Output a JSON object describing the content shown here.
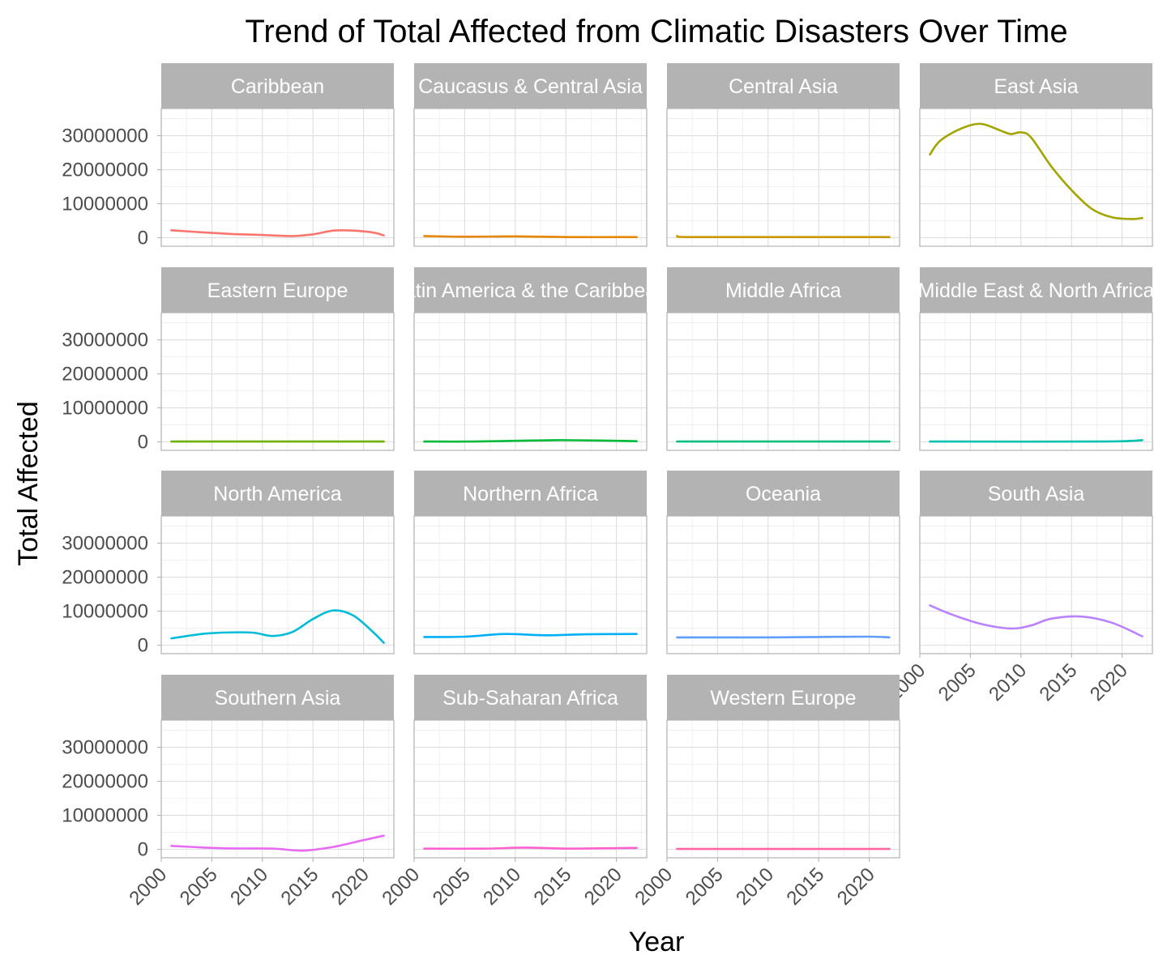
{
  "chart_data": {
    "type": "line",
    "title": "Trend of Total Affected from Climatic Disasters Over Time",
    "xlabel": "Year",
    "ylabel": "Total Affected",
    "xlim": [
      2000,
      2023
    ],
    "ylim": [
      -2500000,
      38000000
    ],
    "x_ticks": [
      "2000",
      "2005",
      "2010",
      "2015",
      "2020"
    ],
    "y_ticks": [
      "0",
      "10000000",
      "20000000",
      "30000000"
    ],
    "grid": true,
    "legend": "none",
    "panels": [
      {
        "name": "Caribbean",
        "color": "#F8766D",
        "x": [
          2001,
          2004,
          2007,
          2010,
          2013,
          2015,
          2017,
          2019,
          2021,
          2022
        ],
        "y": [
          2200000,
          1600000,
          1100000,
          800000,
          500000,
          1000000,
          2100000,
          2100000,
          1500000,
          700000
        ]
      },
      {
        "name": "Caucasus & Central Asia",
        "color": "#E58700",
        "x": [
          2001,
          2005,
          2010,
          2015,
          2022
        ],
        "y": [
          500000,
          300000,
          400000,
          200000,
          200000
        ]
      },
      {
        "name": "Central Asia",
        "color": "#C99800",
        "x": [
          2001,
          2002,
          2010,
          2022
        ],
        "y": [
          500000,
          200000,
          200000,
          200000
        ]
      },
      {
        "name": "East Asia",
        "color": "#A3A500",
        "x": [
          2001,
          2002,
          2004,
          2006,
          2008,
          2009,
          2010,
          2011,
          2013,
          2015,
          2017,
          2019,
          2021,
          2022
        ],
        "y": [
          24500000,
          28500000,
          32000000,
          33500000,
          31500000,
          30500000,
          31000000,
          29500000,
          21000000,
          14000000,
          8500000,
          6000000,
          5500000,
          5800000
        ]
      },
      {
        "name": "Eastern Europe",
        "color": "#6BB100",
        "x": [
          2001,
          2022
        ],
        "y": [
          100000,
          100000
        ]
      },
      {
        "name": "Latin America & the Caribbean",
        "color": "#00BA38",
        "x": [
          2001,
          2006,
          2010,
          2014,
          2018,
          2022
        ],
        "y": [
          100000,
          100000,
          300000,
          500000,
          400000,
          200000
        ]
      },
      {
        "name": "Middle Africa",
        "color": "#00BF7D",
        "x": [
          2001,
          2022
        ],
        "y": [
          100000,
          100000
        ]
      },
      {
        "name": "Middle East & North Africa",
        "color": "#00C0AF",
        "x": [
          2001,
          2018,
          2022
        ],
        "y": [
          100000,
          100000,
          500000
        ]
      },
      {
        "name": "North America",
        "color": "#00BCD8",
        "x": [
          2001,
          2004,
          2006,
          2009,
          2011,
          2013,
          2015,
          2017,
          2019,
          2021,
          2022
        ],
        "y": [
          2000000,
          3300000,
          3700000,
          3700000,
          2700000,
          3900000,
          7700000,
          10200000,
          8700000,
          3700000,
          700000
        ]
      },
      {
        "name": "Northern Africa",
        "color": "#00B0F6",
        "x": [
          2001,
          2005,
          2009,
          2013,
          2017,
          2022
        ],
        "y": [
          2400000,
          2500000,
          3300000,
          2900000,
          3200000,
          3300000
        ]
      },
      {
        "name": "Oceania",
        "color": "#619CFF",
        "x": [
          2001,
          2010,
          2015,
          2020,
          2022
        ],
        "y": [
          2300000,
          2300000,
          2400000,
          2500000,
          2300000
        ]
      },
      {
        "name": "South Asia",
        "color": "#B983FF",
        "x": [
          2001,
          2003,
          2006,
          2009,
          2011,
          2013,
          2016,
          2019,
          2022
        ],
        "y": [
          11700000,
          9200000,
          6300000,
          4900000,
          5800000,
          7800000,
          8400000,
          6600000,
          2600000
        ]
      },
      {
        "name": "Southern Asia",
        "color": "#E76BF3",
        "x": [
          2001,
          2006,
          2011,
          2014,
          2017,
          2020,
          2022
        ],
        "y": [
          1000000,
          300000,
          200000,
          -400000,
          700000,
          2700000,
          4000000
        ]
      },
      {
        "name": "Sub-Saharan Africa",
        "color": "#FD61D1",
        "x": [
          2001,
          2007,
          2011,
          2015,
          2019,
          2022
        ],
        "y": [
          200000,
          200000,
          500000,
          200000,
          300000,
          400000
        ]
      },
      {
        "name": "Western Europe",
        "color": "#FF67A4",
        "x": [
          2001,
          2022
        ],
        "y": [
          100000,
          100000
        ]
      }
    ]
  }
}
